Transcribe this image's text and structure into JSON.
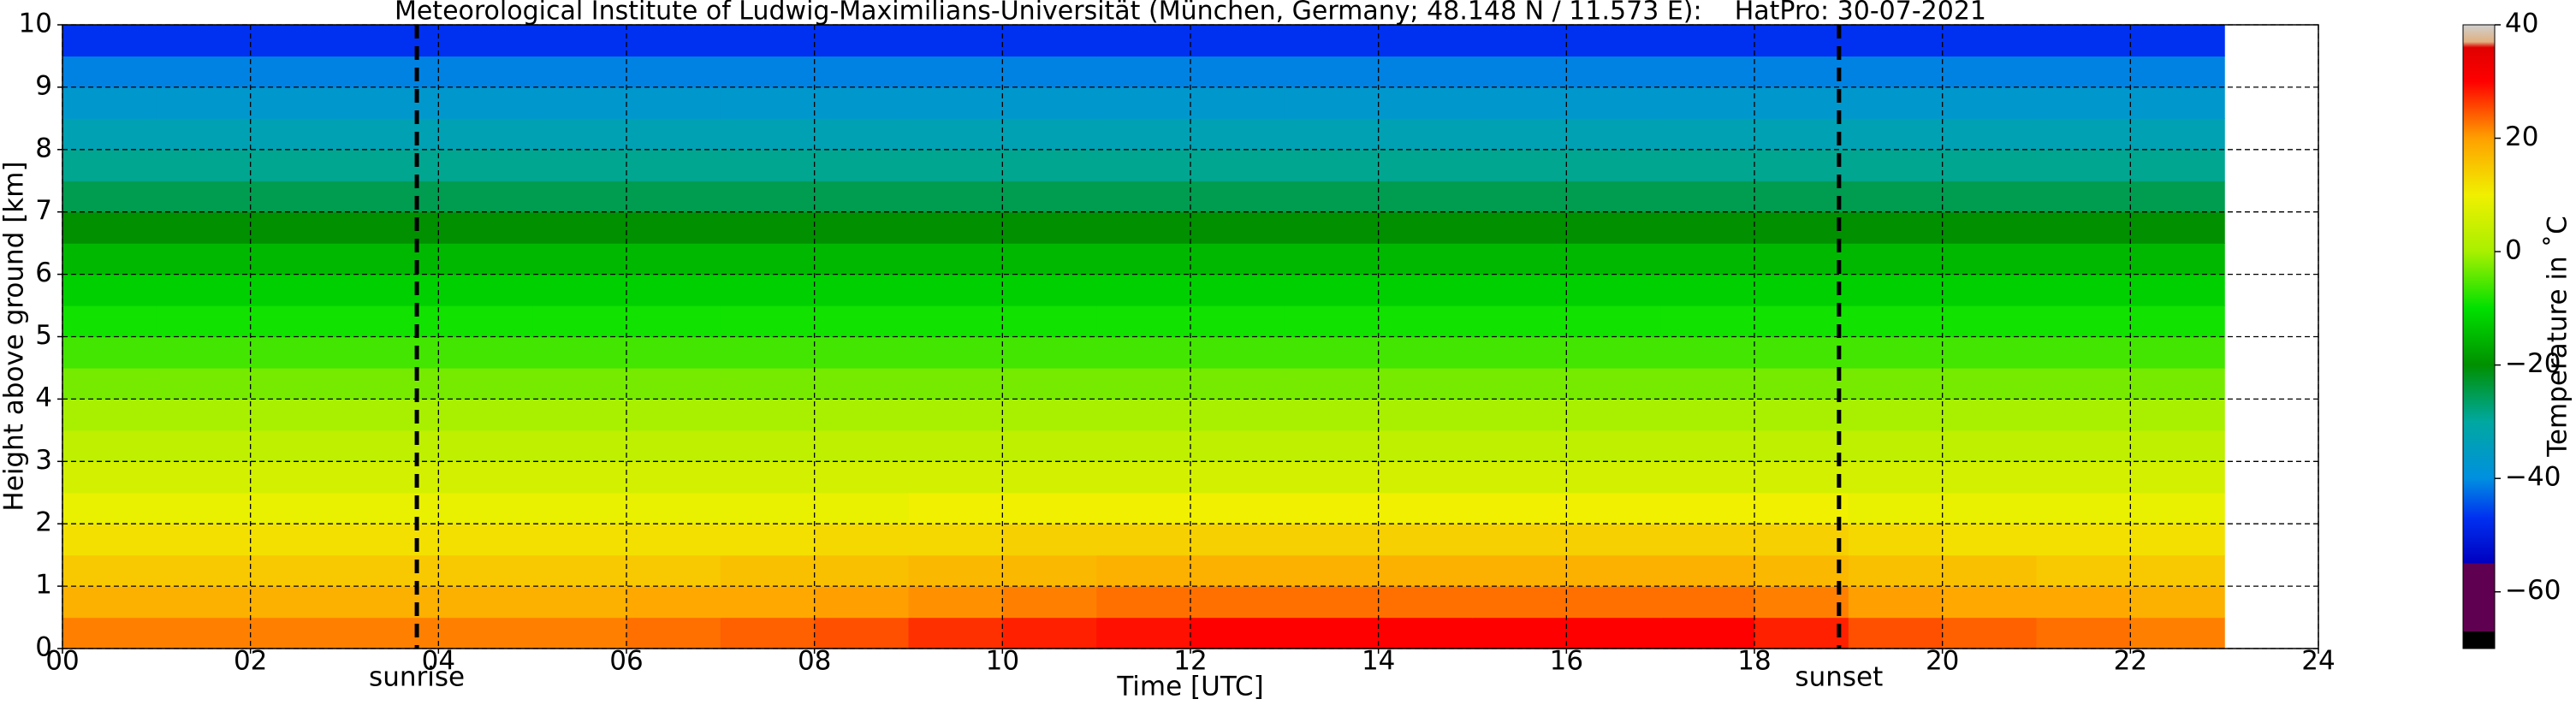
{
  "chart_data": {
    "type": "heatmap",
    "title": "Meteorological Institute of Ludwig-Maximilians-Universität (München, Germany; 48.148 N / 11.573 E):    HatPro: 30-07-2021",
    "xlabel": "Time [UTC]",
    "ylabel": "Height above ground [km]",
    "xlim": [
      0,
      24
    ],
    "ylim": [
      0,
      10
    ],
    "xticks": [
      {
        "value": 0,
        "label": "00"
      },
      {
        "value": 2,
        "label": "02"
      },
      {
        "value": 4,
        "label": "04"
      },
      {
        "value": 6,
        "label": "06"
      },
      {
        "value": 8,
        "label": "08"
      },
      {
        "value": 10,
        "label": "10"
      },
      {
        "value": 12,
        "label": "12"
      },
      {
        "value": 14,
        "label": "14"
      },
      {
        "value": 16,
        "label": "16"
      },
      {
        "value": 18,
        "label": "18"
      },
      {
        "value": 20,
        "label": "20"
      },
      {
        "value": 22,
        "label": "22"
      },
      {
        "value": 24,
        "label": "24"
      }
    ],
    "yticks": [
      0,
      1,
      2,
      3,
      4,
      5,
      6,
      7,
      8,
      9,
      10
    ],
    "grid": true,
    "x_edges": [
      0,
      1,
      2,
      3,
      4,
      5,
      6,
      7,
      8,
      9,
      10,
      11,
      12,
      13,
      14,
      15,
      16,
      17,
      18,
      19,
      20,
      21,
      22,
      23
    ],
    "y_edges": [
      0,
      0.5,
      1,
      1.5,
      2,
      2.5,
      3,
      3.5,
      4,
      4.5,
      5,
      5.5,
      6,
      6.5,
      7,
      7.5,
      8,
      8.5,
      9,
      9.5,
      10
    ],
    "z": [
      [
        22,
        22,
        22,
        22,
        22,
        22,
        23,
        24,
        25,
        27,
        28,
        29,
        30,
        30,
        30,
        30,
        30,
        30,
        28,
        25,
        24,
        23,
        22
      ],
      [
        18,
        18,
        18,
        18,
        18,
        18,
        19,
        19,
        20,
        21,
        22,
        23,
        23,
        23,
        23,
        23,
        23,
        23,
        22,
        20,
        19,
        19,
        18
      ],
      [
        15,
        15,
        15,
        15,
        15,
        15,
        15,
        16,
        16,
        17,
        17,
        18,
        18,
        18,
        18,
        18,
        18,
        18,
        17,
        16,
        16,
        15,
        15
      ],
      [
        12,
        12,
        12,
        12,
        12,
        12,
        12,
        12,
        13,
        13,
        14,
        14,
        14,
        14,
        14,
        14,
        14,
        14,
        14,
        13,
        12,
        12,
        12
      ],
      [
        9,
        9,
        9,
        9,
        9,
        9,
        9,
        9,
        9,
        10,
        10,
        10,
        10,
        10,
        10,
        10,
        10,
        10,
        10,
        9,
        9,
        9,
        9
      ],
      [
        6,
        6,
        6,
        6,
        6,
        6,
        6,
        6,
        6,
        6,
        6,
        6,
        6,
        6,
        6,
        6,
        6,
        6,
        6,
        6,
        6,
        6,
        6
      ],
      [
        3,
        3,
        3,
        3,
        3,
        3,
        3,
        3,
        3,
        3,
        3,
        3,
        3,
        3,
        3,
        3,
        3,
        3,
        3,
        3,
        3,
        3,
        3
      ],
      [
        0,
        0,
        0,
        0,
        0,
        0,
        0,
        0,
        0,
        0,
        0,
        0,
        0,
        0,
        0,
        0,
        0,
        0,
        0,
        0,
        0,
        0,
        0
      ],
      [
        -3,
        -3,
        -3,
        -3,
        -3,
        -3,
        -3,
        -3,
        -3,
        -3,
        -3,
        -3,
        -3,
        -3,
        -3,
        -3,
        -3,
        -3,
        -3,
        -3,
        -3,
        -3,
        -3
      ],
      [
        -6,
        -6,
        -6,
        -6,
        -6,
        -6,
        -6,
        -6,
        -6,
        -6,
        -6,
        -6,
        -6,
        -6,
        -6,
        -6,
        -6,
        -6,
        -6,
        -6,
        -6,
        -6,
        -6
      ],
      [
        -9,
        -9,
        -9,
        -9,
        -9,
        -9,
        -9,
        -9,
        -9,
        -9,
        -9,
        -9,
        -9,
        -9,
        -9,
        -9,
        -9,
        -9,
        -9,
        -9,
        -9,
        -9,
        -9
      ],
      [
        -12,
        -12,
        -12,
        -12,
        -12,
        -12,
        -12,
        -12,
        -12,
        -12,
        -12,
        -12,
        -12,
        -12,
        -12,
        -12,
        -12,
        -12,
        -12,
        -12,
        -12,
        -12,
        -12
      ],
      [
        -15,
        -15,
        -15,
        -15,
        -15,
        -15,
        -15,
        -15,
        -15,
        -15,
        -15,
        -15,
        -15,
        -15,
        -15,
        -15,
        -15,
        -15,
        -15,
        -15,
        -15,
        -15,
        -15
      ],
      [
        -20,
        -20,
        -20,
        -20,
        -20,
        -20,
        -20,
        -20,
        -20,
        -20,
        -20,
        -20,
        -20,
        -20,
        -20,
        -20,
        -20,
        -20,
        -20,
        -20,
        -20,
        -20,
        -20
      ],
      [
        -25,
        -25,
        -25,
        -25,
        -25,
        -25,
        -25,
        -25,
        -25,
        -25,
        -25,
        -25,
        -25,
        -25,
        -25,
        -25,
        -25,
        -25,
        -25,
        -25,
        -25,
        -25,
        -25
      ],
      [
        -29,
        -29,
        -29,
        -29,
        -29,
        -29,
        -29,
        -29,
        -29,
        -29,
        -29,
        -29,
        -29,
        -29,
        -29,
        -29,
        -29,
        -29,
        -29,
        -29,
        -29,
        -29,
        -29
      ],
      [
        -33,
        -33,
        -33,
        -33,
        -33,
        -33,
        -33,
        -33,
        -33,
        -33,
        -33,
        -33,
        -33,
        -33,
        -33,
        -33,
        -33,
        -33,
        -33,
        -33,
        -33,
        -33,
        -33
      ],
      [
        -37,
        -37,
        -37,
        -37,
        -37,
        -37,
        -37,
        -37,
        -37,
        -37,
        -37,
        -37,
        -37,
        -37,
        -37,
        -37,
        -37,
        -37,
        -37,
        -37,
        -37,
        -37,
        -37
      ],
      [
        -41,
        -41,
        -41,
        -41,
        -41,
        -41,
        -41,
        -41,
        -41,
        -41,
        -41,
        -41,
        -41,
        -41,
        -41,
        -41,
        -41,
        -41,
        -41,
        -41,
        -41,
        -41,
        -41
      ],
      [
        -47,
        -47,
        -47,
        -47,
        -47,
        -47,
        -47,
        -47,
        -47,
        -47,
        -47,
        -47,
        -47,
        -47,
        -47,
        -47,
        -47,
        -47,
        -47,
        -47,
        -47,
        -47,
        -47
      ]
    ],
    "colorbar": {
      "label": "Temperature in ˚C",
      "clim": [
        -70,
        40
      ],
      "ticks": [
        {
          "value": -60,
          "label": "−60"
        },
        {
          "value": -40,
          "label": "−40"
        },
        {
          "value": -20,
          "label": "−20"
        },
        {
          "value": 0,
          "label": "0"
        },
        {
          "value": 20,
          "label": "20"
        },
        {
          "value": 40,
          "label": "40"
        }
      ],
      "stops": [
        {
          "value": -70,
          "color": "#000000"
        },
        {
          "value": -67,
          "color": "#000000"
        },
        {
          "value": -67,
          "color": "#600050"
        },
        {
          "value": -55,
          "color": "#600050"
        },
        {
          "value": -55,
          "color": "#0000c0"
        },
        {
          "value": -47,
          "color": "#0030f0"
        },
        {
          "value": -40,
          "color": "#0090e0"
        },
        {
          "value": -30,
          "color": "#00a8a0"
        },
        {
          "value": -20,
          "color": "#009000"
        },
        {
          "value": -10,
          "color": "#00e000"
        },
        {
          "value": 0,
          "color": "#a8f000"
        },
        {
          "value": 10,
          "color": "#f0f000"
        },
        {
          "value": 20,
          "color": "#ffa000"
        },
        {
          "value": 30,
          "color": "#ff0000"
        },
        {
          "value": 36,
          "color": "#e00000"
        },
        {
          "value": 37,
          "color": "#e0b080"
        },
        {
          "value": 40,
          "color": "#d0d0d0"
        }
      ]
    },
    "annotations": [
      {
        "text": "sunrise",
        "x": 3.77
      },
      {
        "text": "sunset",
        "x": 18.9
      }
    ]
  }
}
